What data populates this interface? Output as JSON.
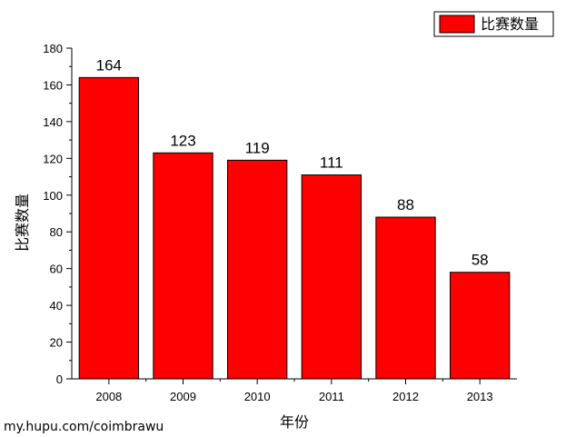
{
  "chart_data": {
    "type": "bar",
    "categories": [
      "2008",
      "2009",
      "2010",
      "2011",
      "2012",
      "2013"
    ],
    "series": [
      {
        "name": "比赛数量",
        "values": [
          164,
          123,
          119,
          111,
          88,
          58
        ],
        "color": "#ff0000"
      }
    ],
    "data_labels": [
      "164",
      "123",
      "119",
      "111",
      "88",
      "58"
    ],
    "xlabel": "年份",
    "ylabel": "比赛数量",
    "ylim": [
      0,
      180
    ],
    "yticks": [
      0,
      20,
      40,
      60,
      80,
      100,
      120,
      140,
      160,
      180
    ],
    "grid": false,
    "legend_position": "top-right"
  },
  "watermark": "my.hupu.com/coimbrawu"
}
